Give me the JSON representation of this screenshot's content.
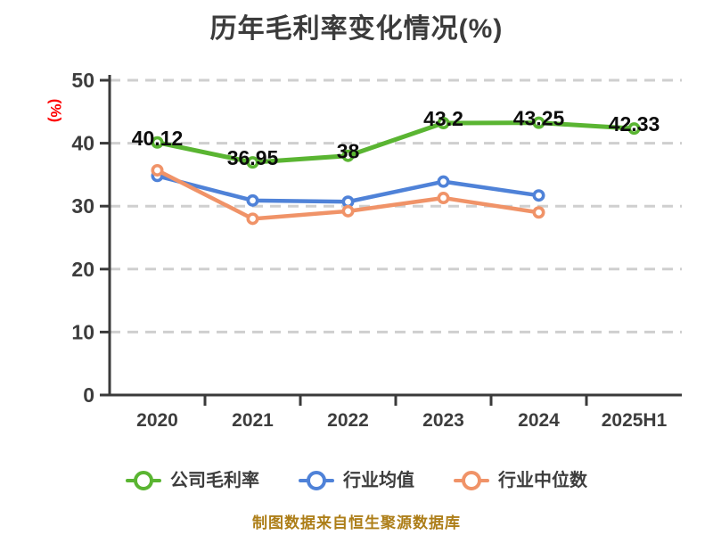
{
  "chart_data": {
    "type": "line",
    "title": "历年毛利率变化情况(%)",
    "ylabel": "(%)",
    "xlabel": "",
    "categories": [
      "2020",
      "2021",
      "2022",
      "2023",
      "2024",
      "2025H1"
    ],
    "series": [
      {
        "name": "公司毛利率",
        "color": "#5ab532",
        "show_labels": true,
        "values": [
          40.12,
          36.95,
          38,
          43.2,
          43.25,
          42.33
        ]
      },
      {
        "name": "行业均值",
        "color": "#4f82d8",
        "show_labels": false,
        "values": [
          34.8,
          30.9,
          30.7,
          33.9,
          31.7,
          null
        ]
      },
      {
        "name": "行业中位数",
        "color": "#f09368",
        "show_labels": false,
        "values": [
          35.7,
          28.0,
          29.2,
          31.3,
          29.0,
          null
        ]
      }
    ],
    "ylim": [
      0,
      50
    ],
    "yticks": [
      0,
      10,
      20,
      30,
      40,
      50
    ],
    "grid": "horizontal-dashed",
    "legend_position": "bottom"
  },
  "footer": {
    "text": "制图数据来自恒生聚源数据库"
  },
  "colors": {
    "title": "#3b3b3b",
    "axis": "#3a3a3a",
    "tick_label": "#3d3d3d",
    "grid": "#cfcfcf",
    "ylabel": "#fe0000",
    "data_label": "#0d0d0d",
    "footer": "#ad7e18",
    "marker_fill": "#ffffff"
  }
}
